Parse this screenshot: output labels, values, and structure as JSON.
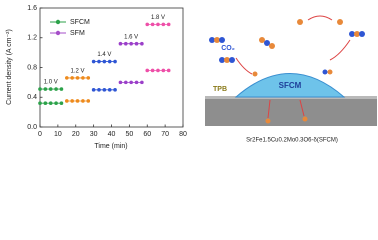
{
  "chart_data": {
    "type": "line",
    "xlabel": "Time (min)",
    "ylabel": "Current density (A cm⁻²)",
    "xlim": [
      0,
      80
    ],
    "xticks": [
      0,
      10,
      20,
      30,
      40,
      50,
      60,
      70,
      80
    ],
    "ylim": [
      0,
      1.6
    ],
    "yticks": [
      {
        "value": 0,
        "label": "0.0"
      },
      0.4,
      0.8,
      1.2,
      1.6
    ],
    "series": [
      {
        "name": "SFCM",
        "color": "#2ca24a"
      },
      {
        "name": "SFM",
        "color": "#a64fc9"
      }
    ],
    "steps": [
      {
        "label": "1.0 V",
        "color": "#2ca24a",
        "x": [
          0,
          3,
          6,
          9,
          12
        ],
        "series": [
          {
            "values": [
              0.51,
              0.51,
              0.51,
              0.51,
              0.51
            ]
          },
          {
            "values": [
              0.32,
              0.32,
              0.32,
              0.32,
              0.32
            ]
          }
        ]
      },
      {
        "label": "1.2 V",
        "color": "#ee8a1c",
        "x": [
          15,
          18,
          21,
          24,
          27
        ],
        "series": [
          {
            "values": [
              0.66,
              0.66,
              0.66,
              0.66,
              0.66
            ]
          },
          {
            "values": [
              0.35,
              0.35,
              0.35,
              0.35,
              0.35
            ]
          }
        ]
      },
      {
        "label": "1.4 V",
        "color": "#2f56d4",
        "x": [
          30,
          33,
          36,
          39,
          42
        ],
        "series": [
          {
            "values": [
              0.88,
              0.88,
              0.88,
              0.88,
              0.88
            ]
          },
          {
            "values": [
              0.5,
              0.5,
              0.5,
              0.5,
              0.5
            ]
          }
        ]
      },
      {
        "label": "1.6 V",
        "color": "#9b3fc9",
        "x": [
          45,
          48,
          51,
          54,
          57
        ],
        "series": [
          {
            "values": [
              1.12,
              1.12,
              1.12,
              1.12,
              1.12
            ]
          },
          {
            "values": [
              0.6,
              0.6,
              0.6,
              0.6,
              0.6
            ]
          }
        ]
      },
      {
        "label": "1.8 V",
        "color": "#ee4fa8",
        "x": [
          60,
          63,
          66,
          69,
          72
        ],
        "series": [
          {
            "values": [
              1.38,
              1.38,
              1.38,
              1.38,
              1.38
            ]
          },
          {
            "values": [
              0.76,
              0.76,
              0.76,
              0.76,
              0.76
            ]
          }
        ]
      }
    ]
  },
  "schematic": {
    "gas": "CO₂",
    "boundary": "TPB",
    "electrode": "SFCM",
    "caption": "Sr2Fe1.5Cu0.2Mo0.3O6-δ(SFCM)"
  }
}
